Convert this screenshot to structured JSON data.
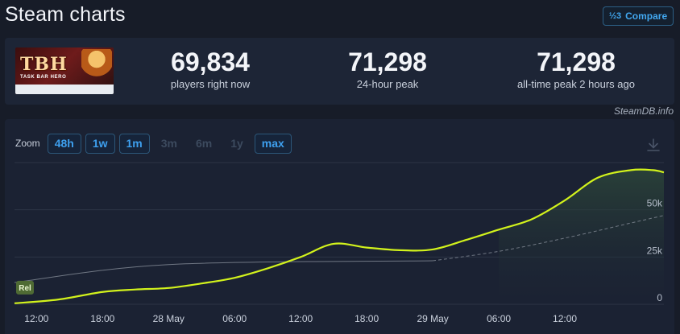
{
  "header": {
    "title": "Steam charts",
    "compare_label": "Compare",
    "compare_icon_glyph": "½3"
  },
  "stats": {
    "now": {
      "value": "69,834",
      "label": "players right now"
    },
    "peak24": {
      "value": "71,298",
      "label": "24-hour peak"
    },
    "alltime": {
      "value": "71,298",
      "label": "all-time peak 2 hours ago"
    }
  },
  "game_thumb": {
    "logo_text": "TBH",
    "sub_text": "TASK BAR HERO"
  },
  "watermark": "SteamDB.info",
  "zoom": {
    "label": "Zoom",
    "options": [
      {
        "label": "48h",
        "enabled": true
      },
      {
        "label": "1w",
        "enabled": true
      },
      {
        "label": "1m",
        "enabled": true
      },
      {
        "label": "3m",
        "enabled": false
      },
      {
        "label": "6m",
        "enabled": false
      },
      {
        "label": "1y",
        "enabled": false
      },
      {
        "label": "max",
        "enabled": true
      }
    ]
  },
  "colors": {
    "series_line": "#d2f21c",
    "rel_line": "#868d99",
    "accent": "#3ea0ef",
    "grid": "#2c3446"
  },
  "chart_data": {
    "type": "line",
    "legend_badge": "Rel",
    "x_tick_labels": [
      "12:00",
      "18:00",
      "28 May",
      "06:00",
      "12:00",
      "18:00",
      "29 May",
      "06:00",
      "12:00"
    ],
    "y_tick_labels": [
      "0",
      "25k",
      "50k"
    ],
    "ylim": [
      0,
      75000
    ],
    "xlim_hours": [
      -14,
      45
    ],
    "series": [
      {
        "style": "solid",
        "x_hours": [
          -14,
          -10,
          -6,
          -3,
          0,
          3,
          6,
          9,
          12,
          15,
          18,
          21,
          24,
          27,
          30,
          33,
          36,
          39,
          42,
          44,
          45
        ],
        "values": [
          500,
          2500,
          6500,
          7800,
          8600,
          11000,
          14000,
          19000,
          25000,
          32000,
          30000,
          28600,
          29000,
          34000,
          39500,
          45000,
          55000,
          67000,
          71000,
          71000,
          69834
        ]
      },
      {
        "style": "solid-gray",
        "x_hours": [
          -14,
          0,
          24
        ],
        "values": [
          11500,
          21000,
          23000
        ]
      },
      {
        "style": "dashed-gray",
        "x_hours": [
          24,
          30,
          36,
          42,
          45
        ],
        "values": [
          23000,
          28000,
          35000,
          43000,
          47000
        ]
      }
    ]
  }
}
